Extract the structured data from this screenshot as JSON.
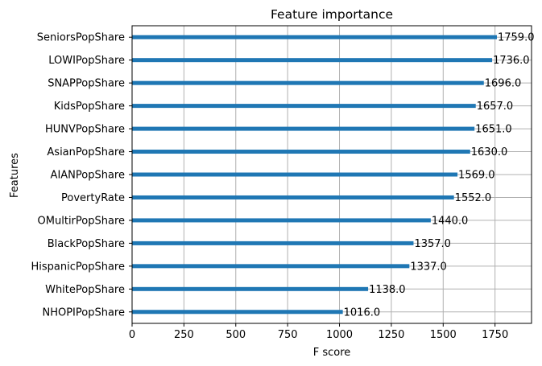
{
  "chart_data": {
    "type": "bar",
    "orientation": "horizontal",
    "title": "Feature importance",
    "xlabel": "F score",
    "ylabel": "Features",
    "xlim": [
      0,
      1926
    ],
    "xticks": [
      0,
      250,
      500,
      750,
      1000,
      1250,
      1500,
      1750
    ],
    "grid": true,
    "categories": [
      "SeniorsPopShare",
      "LOWIPopShare",
      "SNAPPopShare",
      "KidsPopShare",
      "HUNVPopShare",
      "AsianPopShare",
      "AIANPopShare",
      "PovertyRate",
      "OMultirPopShare",
      "BlackPopShare",
      "HispanicPopShare",
      "WhitePopShare",
      "NHOPIPopShare"
    ],
    "values": [
      1759,
      1736,
      1696,
      1657,
      1651,
      1630,
      1569,
      1552,
      1440,
      1357,
      1337,
      1138,
      1016
    ],
    "data_labels": [
      "1759.0",
      "1736.0",
      "1696.0",
      "1657.0",
      "1651.0",
      "1630.0",
      "1569.0",
      "1552.0",
      "1440.0",
      "1357.0",
      "1337.0",
      "1138.0",
      "1016.0"
    ],
    "bar_color": "#1f77b4",
    "grid_color": "#b0b0b0"
  }
}
